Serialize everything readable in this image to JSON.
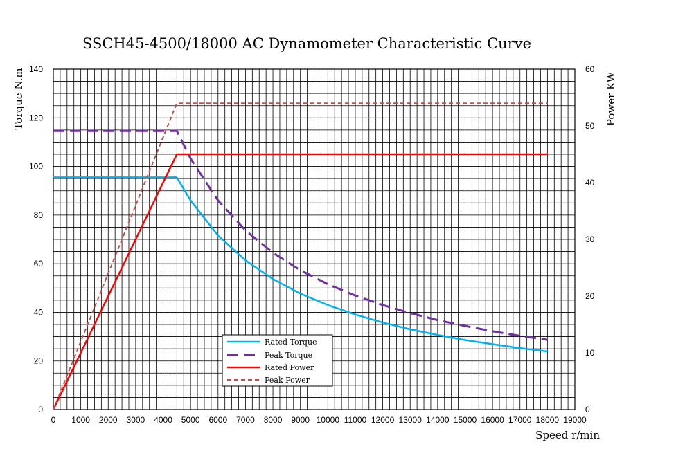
{
  "chart_data": {
    "type": "line",
    "title": "SSCH45-4500/18000 AC Dynamometer Characteristic Curve",
    "xlabel": "Speed r/min",
    "ylabel_left": "Torque N.m",
    "ylabel_right": "Power KW",
    "xlim": [
      0,
      19000
    ],
    "ylim_left": [
      0,
      140
    ],
    "ylim_right": [
      0,
      60
    ],
    "x_ticks": [
      0,
      1000,
      2000,
      3000,
      4000,
      5000,
      6000,
      7000,
      8000,
      9000,
      10000,
      11000,
      12000,
      13000,
      14000,
      15000,
      16000,
      17000,
      18000,
      19000
    ],
    "y_ticks_left": [
      0,
      20,
      40,
      60,
      80,
      100,
      120,
      140
    ],
    "y_ticks_right": [
      0,
      10,
      20,
      30,
      40,
      50,
      60
    ],
    "grid": true,
    "legend_position": "bottom-center",
    "series": [
      {
        "name": "Rated Torque",
        "axis": "left",
        "color": "#00b0f0",
        "dash": "solid",
        "x": [
          0,
          4400,
          4500,
          5000,
          6000,
          7000,
          8000,
          9000,
          10000,
          11000,
          12000,
          13000,
          14000,
          15000,
          16000,
          17000,
          18000
        ],
        "y": [
          95.5,
          95.5,
          95.5,
          86,
          71.6,
          61.4,
          53.7,
          47.7,
          43,
          39.1,
          35.8,
          33,
          30.7,
          28.6,
          26.9,
          25.3,
          23.9
        ]
      },
      {
        "name": "Peak Torque",
        "axis": "left",
        "color": "#7030a0",
        "dash": "long-dash",
        "x": [
          0,
          4400,
          4500,
          5000,
          6000,
          7000,
          8000,
          9000,
          10000,
          11000,
          12000,
          13000,
          14000,
          15000,
          16000,
          17000,
          18000
        ],
        "y": [
          114.6,
          114.6,
          114.6,
          103.2,
          86,
          73.7,
          64.5,
          57.3,
          51.6,
          46.9,
          43,
          39.7,
          36.8,
          34.4,
          32.2,
          30.3,
          28.7
        ]
      },
      {
        "name": "Rated Power",
        "axis": "right",
        "color": "#ff0000",
        "dash": "solid",
        "x": [
          0,
          4500,
          18000
        ],
        "y": [
          0,
          45,
          45
        ]
      },
      {
        "name": "Peak Power",
        "axis": "right",
        "color": "#c0504d",
        "dash": "short-dash",
        "x": [
          0,
          4500,
          18000
        ],
        "y": [
          0,
          54,
          54
        ]
      }
    ]
  }
}
